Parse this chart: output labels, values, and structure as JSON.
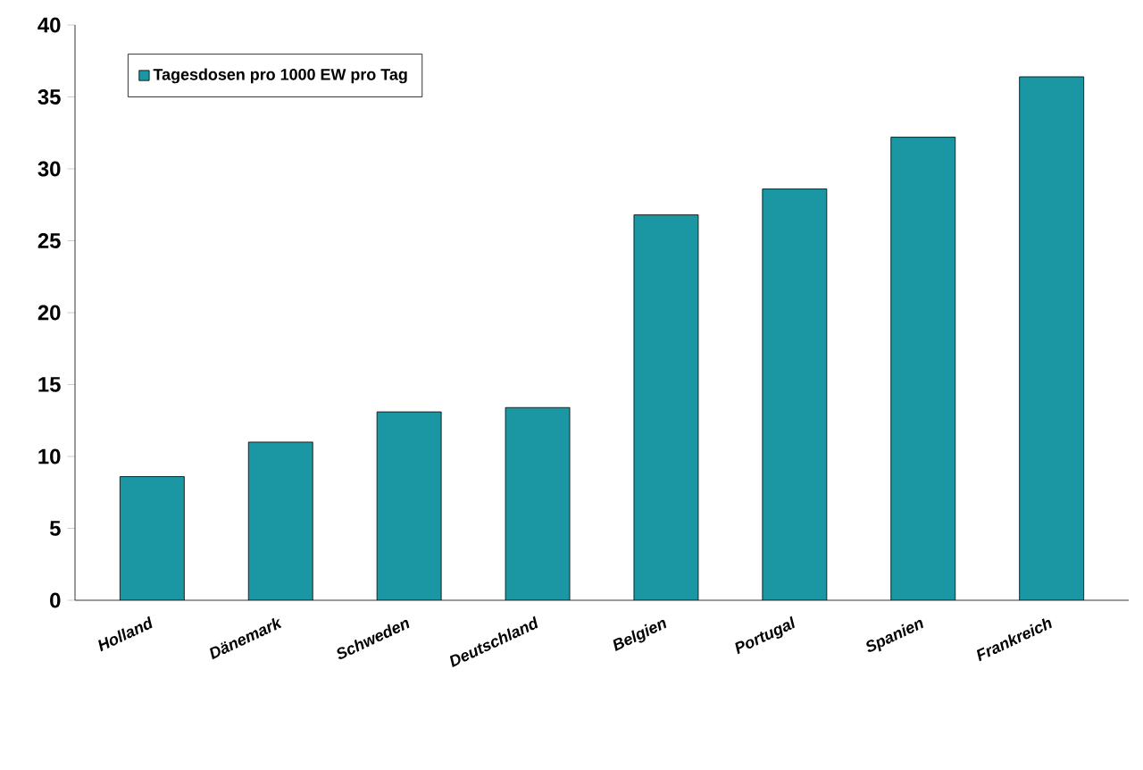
{
  "chart_data": {
    "type": "bar",
    "categories": [
      "Holland",
      "Dänemark",
      "Schweden",
      "Deutschland",
      "Belgien",
      "Portugal",
      "Spanien",
      "Frankreich"
    ],
    "series": [
      {
        "name": "Tagesdosen pro 1000 EW pro Tag",
        "color": "#1a97a3",
        "values": [
          8.6,
          11,
          13.1,
          13.4,
          26.8,
          28.6,
          32.2,
          36.4
        ]
      }
    ],
    "ylim": [
      0,
      40
    ],
    "yticks": [
      0,
      5,
      10,
      15,
      20,
      25,
      30,
      35,
      40
    ],
    "legend": "top left"
  }
}
